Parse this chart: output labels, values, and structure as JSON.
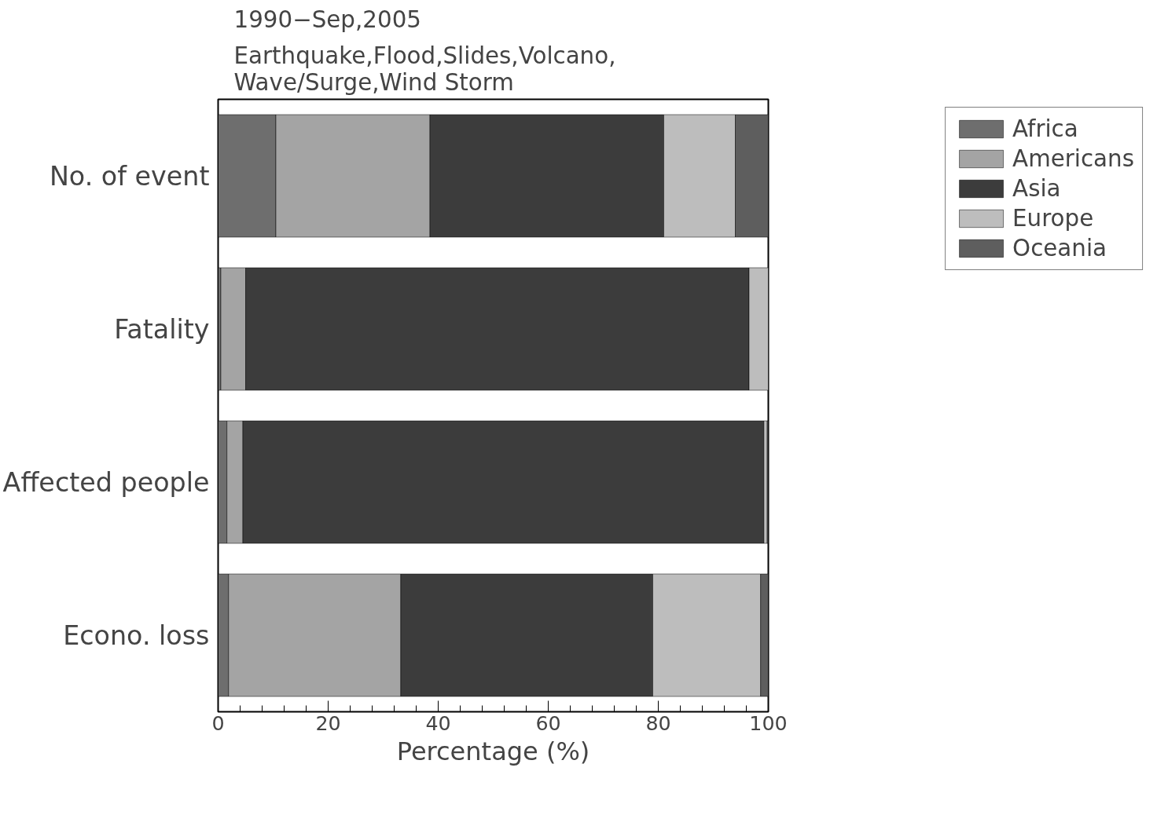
{
  "chart_data": {
    "type": "bar",
    "orientation": "horizontal",
    "stacked": true,
    "title": "1990−Sep,2005",
    "subtitle": "Earthquake,Flood,Slides,Volcano,\nWave/Surge,Wind Storm",
    "xlabel": "Percentage (%)",
    "categories": [
      "No. of event",
      "Fatality",
      "Affected people",
      "Econo. loss"
    ],
    "series": [
      {
        "name": "Africa",
        "color": "#6e6e6e",
        "values": [
          10.5,
          0.5,
          1.6,
          1.9
        ]
      },
      {
        "name": "Americans",
        "color": "#a4a4a4",
        "values": [
          28,
          4.5,
          2.9,
          31.3
        ]
      },
      {
        "name": "Asia",
        "color": "#3c3c3c",
        "values": [
          42.5,
          91.5,
          94.7,
          45.8
        ]
      },
      {
        "name": "Europe",
        "color": "#bdbdbd",
        "values": [
          13,
          3.5,
          0.6,
          19.6
        ]
      },
      {
        "name": "Oceania",
        "color": "#5e5e5e",
        "values": [
          6,
          null,
          0.2,
          1.4
        ]
      }
    ],
    "xlim": [
      0,
      100
    ],
    "xticks": [
      0,
      {
        "value": 4,
        "label": null
      },
      {
        "value": 8,
        "label": null
      },
      {
        "value": 12,
        "label": null
      },
      {
        "value": 16,
        "label": null
      },
      20,
      {
        "value": 24,
        "label": null
      },
      {
        "value": 28,
        "label": null
      },
      {
        "value": 32,
        "label": null
      },
      {
        "value": 36,
        "label": null
      },
      40,
      {
        "value": 44,
        "label": null
      },
      {
        "value": 48,
        "label": null
      },
      {
        "value": 52,
        "label": null
      },
      {
        "value": 56,
        "label": null
      },
      60,
      {
        "value": 64,
        "label": null
      },
      {
        "value": 68,
        "label": null
      },
      {
        "value": 72,
        "label": null
      },
      {
        "value": 76,
        "label": null
      },
      80,
      {
        "value": 84,
        "label": null
      },
      {
        "value": 88,
        "label": null
      },
      {
        "value": 92,
        "label": null
      },
      {
        "value": 96,
        "label": null
      },
      100
    ],
    "grid": false,
    "legend": "top right"
  }
}
